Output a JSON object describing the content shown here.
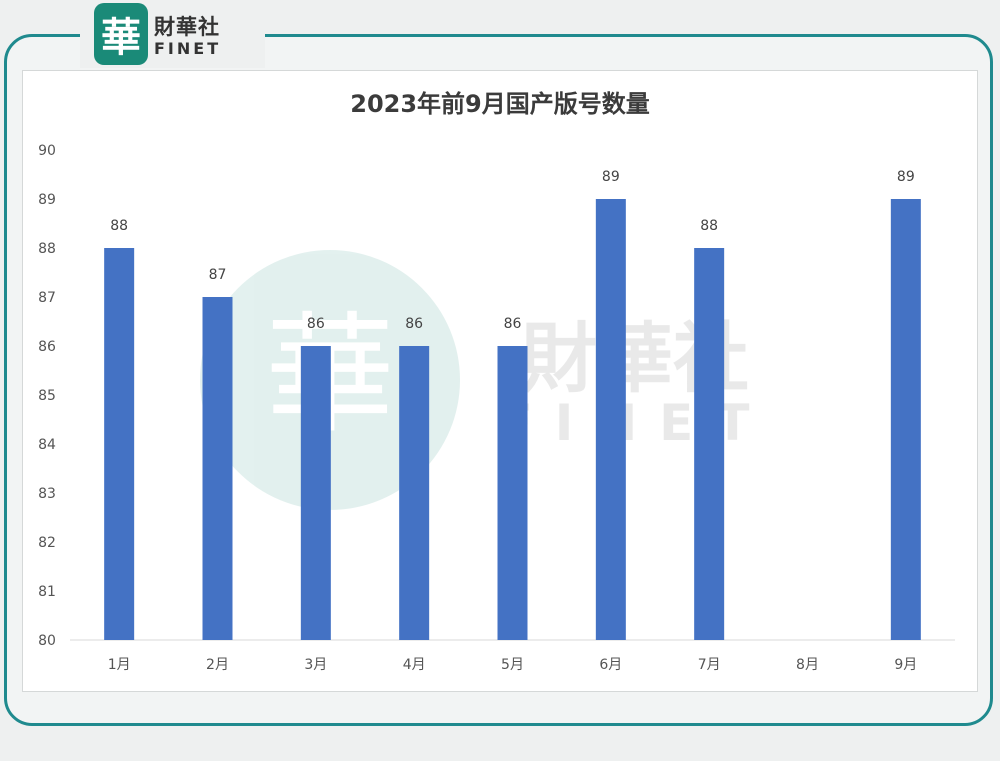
{
  "brand": {
    "seal": "華",
    "name_cn": "財華社",
    "name_en": "FINET"
  },
  "watermark": {
    "seal": "華",
    "name_cn": "財華社",
    "name_en": "FINET"
  },
  "colors": {
    "bar": "#4472c4",
    "frame": "#1f8a8e",
    "grid": "#d9d9d9"
  },
  "chart_data": {
    "type": "bar",
    "title": "2023年前9月国产版号数量",
    "xlabel": "",
    "ylabel": "",
    "categories": [
      "1月",
      "2月",
      "3月",
      "4月",
      "5月",
      "6月",
      "7月",
      "8月",
      "9月"
    ],
    "values": [
      88,
      87,
      86,
      86,
      86,
      89,
      88,
      null,
      89
    ],
    "data_labels": [
      "88",
      "87",
      "86",
      "86",
      "86",
      "89",
      "88",
      "",
      "89"
    ],
    "ylim": [
      80,
      90
    ],
    "yticks": [
      "80",
      "81",
      "82",
      "83",
      "84",
      "85",
      "86",
      "87",
      "88",
      "89",
      "90"
    ],
    "grid": false,
    "legend": "none"
  }
}
